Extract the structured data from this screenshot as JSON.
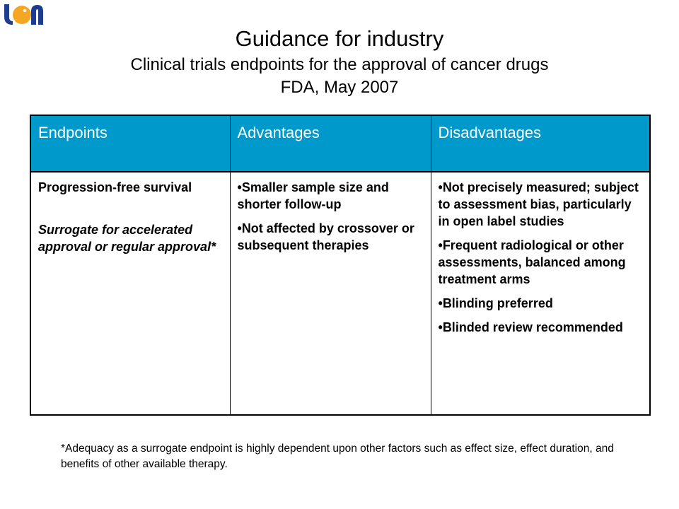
{
  "colors": {
    "header_bg": "#0099cc",
    "logo_blue": "#1e3d8f",
    "logo_orange": "#f5a623"
  },
  "logo": {
    "icon": "university-logo-icon"
  },
  "header": {
    "title": "Guidance for industry",
    "subtitle": "Clinical trials endpoints for the approval of cancer drugs",
    "source": "FDA, May 2007"
  },
  "table": {
    "columns": [
      "Endpoints",
      "Advantages",
      "Disadvantages"
    ],
    "row": {
      "endpoint": "Progression-free survival",
      "endpoint_note": "Surrogate for accelerated approval or regular approval*",
      "advantages": [
        "Smaller sample size and shorter follow-up",
        "Not affected by crossover or subsequent therapies"
      ],
      "disadvantages": [
        "Not precisely measured; subject to assessment bias, particularly in open label studies",
        "Frequent radiological or other assessments, balanced among treatment arms",
        "Blinding preferred",
        "Blinded review recommended"
      ]
    }
  },
  "footnote": "*Adequacy as a surrogate endpoint is highly dependent upon other factors such as effect size, effect duration, and benefits of other available therapy."
}
